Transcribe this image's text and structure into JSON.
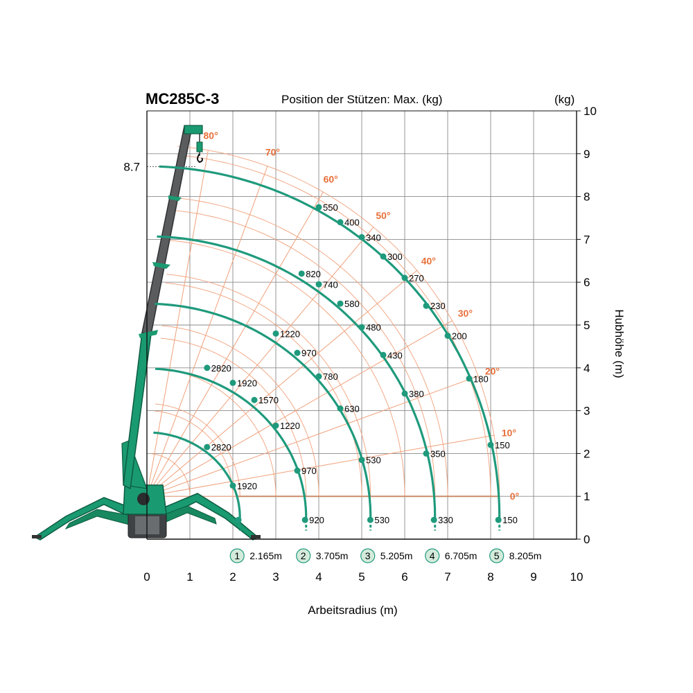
{
  "chart_data": {
    "type": "line",
    "title": "MC285C-3",
    "subtitle": "Position der Stützen: Max. (kg)",
    "unit_label": "(kg)",
    "xlabel": "Arbeitsradius (m)",
    "ylabel": "Hubhöhe (m)",
    "xlim": [
      0,
      10
    ],
    "ylim": [
      0,
      10
    ],
    "x_ticks": [
      "0",
      "1",
      "2",
      "3",
      "4",
      "5",
      "6",
      "7",
      "8",
      "9",
      "10"
    ],
    "y_ticks": [
      "0",
      "1",
      "2",
      "3",
      "4",
      "5",
      "6",
      "7",
      "8",
      "9",
      "10"
    ],
    "grid": true,
    "max_height_label": "8.7",
    "max_height": 8.7,
    "pivot": {
      "x": 0.0,
      "y": 1.0
    },
    "angles": [
      {
        "label": "0°",
        "deg": 0
      },
      {
        "label": "10°",
        "deg": 10
      },
      {
        "label": "20°",
        "deg": 20
      },
      {
        "label": "30°",
        "deg": 30
      },
      {
        "label": "40°",
        "deg": 40
      },
      {
        "label": "50°",
        "deg": 50
      },
      {
        "label": "60°",
        "deg": 60
      },
      {
        "label": "70°",
        "deg": 70
      },
      {
        "label": "80°",
        "deg": 80
      }
    ],
    "series": [
      {
        "name": "1",
        "radius_label": "2.165m",
        "radius": 2.165,
        "points": [
          {
            "x": 1.4,
            "y": 4.0,
            "label": "2820"
          },
          {
            "x": 2.0,
            "y": 3.65,
            "label": "1920"
          },
          {
            "x": 1.4,
            "y": 2.15,
            "label": "2820"
          },
          {
            "x": 2.0,
            "y": 1.25,
            "label": "1920"
          },
          {
            "x": 2.13,
            "y": 0.45,
            "label": ""
          }
        ]
      },
      {
        "name": "2",
        "radius_label": "3.705m",
        "radius": 3.705,
        "points": [
          {
            "x": 3.0,
            "y": 4.8,
            "label": "1220"
          },
          {
            "x": 2.5,
            "y": 3.25,
            "label": "1570"
          },
          {
            "x": 3.0,
            "y": 2.65,
            "label": "1220"
          },
          {
            "x": 3.5,
            "y": 4.35,
            "label": "970"
          },
          {
            "x": 3.5,
            "y": 1.6,
            "label": "970"
          },
          {
            "x": 3.68,
            "y": 0.45,
            "label": "920"
          }
        ]
      },
      {
        "name": "3",
        "radius_label": "5.205m",
        "radius": 5.205,
        "points": [
          {
            "x": 3.6,
            "y": 6.2,
            "label": "820"
          },
          {
            "x": 4.0,
            "y": 5.95,
            "label": "740"
          },
          {
            "x": 4.5,
            "y": 5.5,
            "label": "580"
          },
          {
            "x": 4.0,
            "y": 3.8,
            "label": "780"
          },
          {
            "x": 4.5,
            "y": 3.05,
            "label": "630"
          },
          {
            "x": 5.0,
            "y": 1.85,
            "label": "530"
          },
          {
            "x": 5.2,
            "y": 0.45,
            "label": "530"
          }
        ]
      },
      {
        "name": "4",
        "radius_label": "6.705m",
        "radius": 6.705,
        "points": [
          {
            "x": 4.0,
            "y": 7.75,
            "label": "550"
          },
          {
            "x": 4.5,
            "y": 7.4,
            "label": "400"
          },
          {
            "x": 5.0,
            "y": 7.05,
            "label": "340"
          },
          {
            "x": 5.0,
            "y": 4.95,
            "label": "480"
          },
          {
            "x": 5.5,
            "y": 4.3,
            "label": "430"
          },
          {
            "x": 6.0,
            "y": 3.4,
            "label": "380"
          },
          {
            "x": 6.5,
            "y": 2.0,
            "label": "350"
          },
          {
            "x": 6.68,
            "y": 0.45,
            "label": "330"
          }
        ]
      },
      {
        "name": "5",
        "radius_label": "8.205m",
        "radius": 8.205,
        "points": [
          {
            "x": 5.5,
            "y": 6.6,
            "label": "300"
          },
          {
            "x": 6.0,
            "y": 6.1,
            "label": "270"
          },
          {
            "x": 6.5,
            "y": 5.45,
            "label": "230"
          },
          {
            "x": 7.0,
            "y": 4.75,
            "label": "200"
          },
          {
            "x": 7.5,
            "y": 3.75,
            "label": "180"
          },
          {
            "x": 8.0,
            "y": 2.2,
            "label": "150"
          },
          {
            "x": 8.18,
            "y": 0.45,
            "label": "150"
          }
        ]
      }
    ],
    "colors": {
      "curve": "#1f9a7c",
      "angle_grid": "#f0a07a",
      "angle_label": "#e8703a",
      "grid": "#8a8a8a",
      "crane_green": "#1a9a70",
      "crane_gray": "#5a5c5e",
      "badge_fill": "#d4ebdc"
    }
  }
}
